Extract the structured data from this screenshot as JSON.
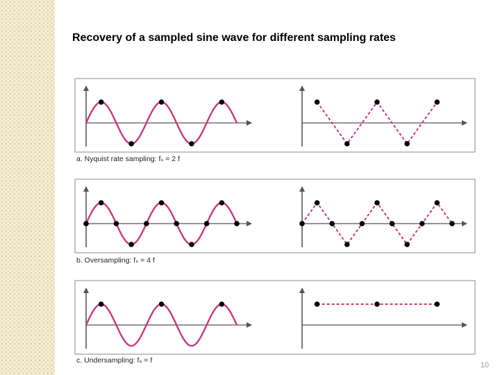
{
  "slide": {
    "title": "Recovery of a sampled sine wave for different sampling rates",
    "page_number": "10"
  },
  "colors": {
    "signal": "#c8387e",
    "axis": "#555555",
    "frame": "#888888",
    "sample_dot": "#000000",
    "side_strip": "#f3ecd2"
  },
  "panels": [
    {
      "id": "nyquist",
      "caption": "a. Nyquist rate sampling: fₛ = 2 f",
      "signal_cycles": 2.5,
      "samples_per_cycle": 2,
      "sample_phase": 0.25
    },
    {
      "id": "oversampling",
      "caption": "b. Oversampling: fₛ = 4 f",
      "signal_cycles": 2.5,
      "samples_per_cycle": 4,
      "sample_phase": 0
    },
    {
      "id": "undersampling",
      "caption": "c. Undersampling: fₛ =  f",
      "signal_cycles": 2.5,
      "samples_per_cycle": 1,
      "sample_phase": 0.25
    }
  ]
}
